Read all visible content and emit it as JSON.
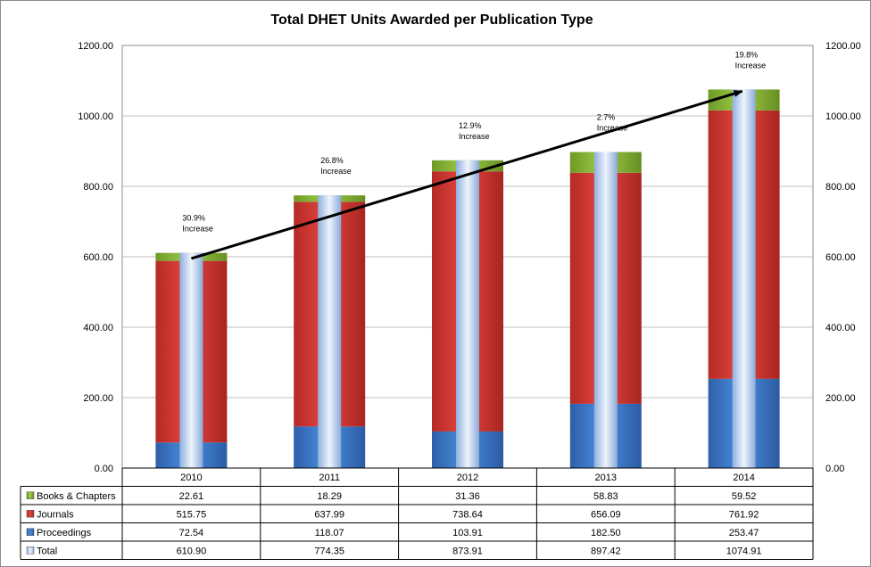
{
  "chart_data": {
    "type": "bar",
    "title": "Total DHET Units Awarded per Publication Type",
    "categories": [
      "2010",
      "2011",
      "2012",
      "2013",
      "2014"
    ],
    "stacked_series": [
      {
        "name": "Proceedings",
        "values": [
          72.54,
          118.07,
          103.91,
          182.5,
          253.47
        ],
        "color": "#3f7fd0"
      },
      {
        "name": "Journals",
        "values": [
          515.75,
          637.99,
          738.64,
          656.09,
          761.92
        ],
        "color": "#d93a36"
      },
      {
        "name": "Books & Chapters",
        "values": [
          22.61,
          18.29,
          31.36,
          58.83,
          59.52
        ],
        "color": "#8fbc3b"
      }
    ],
    "total_series": {
      "name": "Total",
      "values": [
        610.9,
        774.35,
        873.91,
        897.42,
        1074.91
      ],
      "color": "#b8d0f0"
    },
    "table_rows": [
      {
        "name": "Books & Chapters",
        "values": [
          "22.61",
          "18.29",
          "31.36",
          "58.83",
          "59.52"
        ],
        "color": "#8fbc3b"
      },
      {
        "name": "Journals",
        "values": [
          "515.75",
          "637.99",
          "738.64",
          "656.09",
          "761.92"
        ],
        "color": "#d93a36"
      },
      {
        "name": "Proceedings",
        "values": [
          "72.54",
          "118.07",
          "103.91",
          "182.50",
          "253.47"
        ],
        "color": "#3f7fd0"
      },
      {
        "name": "Total",
        "values": [
          "610.90",
          "774.35",
          "873.91",
          "897.42",
          "1074.91"
        ],
        "color": "#b8d0f0"
      }
    ],
    "ylim": [
      0,
      1200
    ],
    "yticks": [
      "0.00",
      "200.00",
      "400.00",
      "600.00",
      "800.00",
      "1000.00",
      "1200.00"
    ],
    "annotations": [
      {
        "category": "2010",
        "lines": [
          "30.9%",
          "Increase"
        ]
      },
      {
        "category": "2011",
        "lines": [
          "26.8%",
          "Increase"
        ]
      },
      {
        "category": "2012",
        "lines": [
          "12.9%",
          "Increase"
        ]
      },
      {
        "category": "2013",
        "lines": [
          "2.7%",
          "Increase"
        ]
      },
      {
        "category": "2014",
        "lines": [
          "19.8%",
          "Increase"
        ]
      }
    ],
    "trend_arrow": {
      "from": {
        "category": "2010",
        "value": 595
      },
      "to": {
        "category": "2014",
        "value": 1070
      }
    },
    "grid": true,
    "secondary_axis": true
  }
}
